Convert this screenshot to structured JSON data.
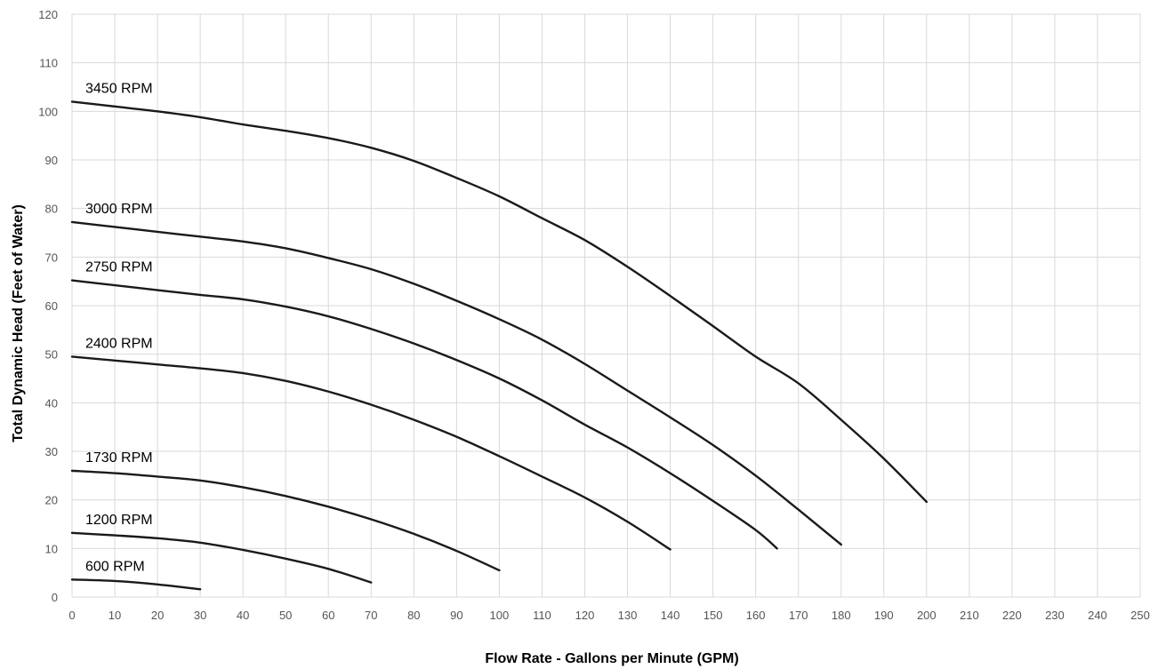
{
  "chart_data": {
    "type": "line",
    "title": "",
    "xlabel": "Flow Rate - Gallons per Minute (GPM)",
    "ylabel": "Total Dynamic Head (Feet of Water)",
    "xlim": [
      0,
      250
    ],
    "ylim": [
      0,
      120
    ],
    "xticks": [
      0,
      10,
      20,
      30,
      40,
      50,
      60,
      70,
      80,
      90,
      100,
      110,
      120,
      130,
      140,
      150,
      160,
      170,
      180,
      190,
      200,
      210,
      220,
      230,
      240,
      250
    ],
    "yticks": [
      0,
      10,
      20,
      30,
      40,
      50,
      60,
      70,
      80,
      90,
      100,
      110,
      120
    ],
    "grid": true,
    "legend": "none",
    "series": [
      {
        "name": "3450 RPM",
        "points": [
          [
            0,
            102
          ],
          [
            10,
            101
          ],
          [
            20,
            100
          ],
          [
            30,
            98.8
          ],
          [
            40,
            97.3
          ],
          [
            50,
            96
          ],
          [
            60,
            94.5
          ],
          [
            70,
            92.5
          ],
          [
            80,
            89.8
          ],
          [
            90,
            86.3
          ],
          [
            100,
            82.5
          ],
          [
            110,
            78
          ],
          [
            120,
            73.5
          ],
          [
            130,
            68
          ],
          [
            140,
            62
          ],
          [
            150,
            55.8
          ],
          [
            160,
            49.5
          ],
          [
            170,
            44
          ],
          [
            180,
            36.5
          ],
          [
            190,
            28.5
          ],
          [
            200,
            19.6
          ]
        ]
      },
      {
        "name": "3000 RPM",
        "points": [
          [
            0,
            77.2
          ],
          [
            10,
            76.2
          ],
          [
            20,
            75.2
          ],
          [
            30,
            74.2
          ],
          [
            40,
            73.2
          ],
          [
            50,
            71.8
          ],
          [
            60,
            69.8
          ],
          [
            70,
            67.5
          ],
          [
            80,
            64.5
          ],
          [
            90,
            61
          ],
          [
            100,
            57.2
          ],
          [
            110,
            53
          ],
          [
            120,
            48
          ],
          [
            130,
            42.5
          ],
          [
            140,
            37
          ],
          [
            150,
            31.3
          ],
          [
            160,
            25
          ],
          [
            170,
            18
          ],
          [
            180,
            10.8
          ]
        ]
      },
      {
        "name": "2750 RPM",
        "points": [
          [
            0,
            65.2
          ],
          [
            10,
            64.2
          ],
          [
            20,
            63.2
          ],
          [
            30,
            62.2
          ],
          [
            40,
            61.3
          ],
          [
            50,
            59.8
          ],
          [
            60,
            57.8
          ],
          [
            70,
            55.2
          ],
          [
            80,
            52.2
          ],
          [
            90,
            48.8
          ],
          [
            100,
            45
          ],
          [
            110,
            40.5
          ],
          [
            120,
            35.5
          ],
          [
            130,
            30.8
          ],
          [
            140,
            25.5
          ],
          [
            150,
            19.8
          ],
          [
            160,
            13.8
          ],
          [
            165,
            10
          ]
        ]
      },
      {
        "name": "2400 RPM",
        "points": [
          [
            0,
            49.5
          ],
          [
            10,
            48.7
          ],
          [
            20,
            47.9
          ],
          [
            30,
            47.1
          ],
          [
            40,
            46.1
          ],
          [
            50,
            44.5
          ],
          [
            60,
            42.3
          ],
          [
            70,
            39.6
          ],
          [
            80,
            36.5
          ],
          [
            90,
            33
          ],
          [
            100,
            29
          ],
          [
            110,
            24.8
          ],
          [
            120,
            20.5
          ],
          [
            130,
            15.5
          ],
          [
            140,
            9.8
          ]
        ]
      },
      {
        "name": "1730 RPM",
        "points": [
          [
            0,
            26
          ],
          [
            10,
            25.5
          ],
          [
            20,
            24.8
          ],
          [
            30,
            24
          ],
          [
            40,
            22.6
          ],
          [
            50,
            20.8
          ],
          [
            60,
            18.6
          ],
          [
            70,
            16
          ],
          [
            80,
            13
          ],
          [
            90,
            9.5
          ],
          [
            100,
            5.5
          ]
        ]
      },
      {
        "name": "1200 RPM",
        "points": [
          [
            0,
            13.2
          ],
          [
            10,
            12.7
          ],
          [
            20,
            12.1
          ],
          [
            30,
            11.2
          ],
          [
            40,
            9.7
          ],
          [
            50,
            7.9
          ],
          [
            60,
            5.8
          ],
          [
            70,
            3
          ]
        ]
      },
      {
        "name": "600 RPM",
        "points": [
          [
            0,
            3.6
          ],
          [
            10,
            3.3
          ],
          [
            20,
            2.6
          ],
          [
            30,
            1.6
          ]
        ]
      }
    ]
  }
}
